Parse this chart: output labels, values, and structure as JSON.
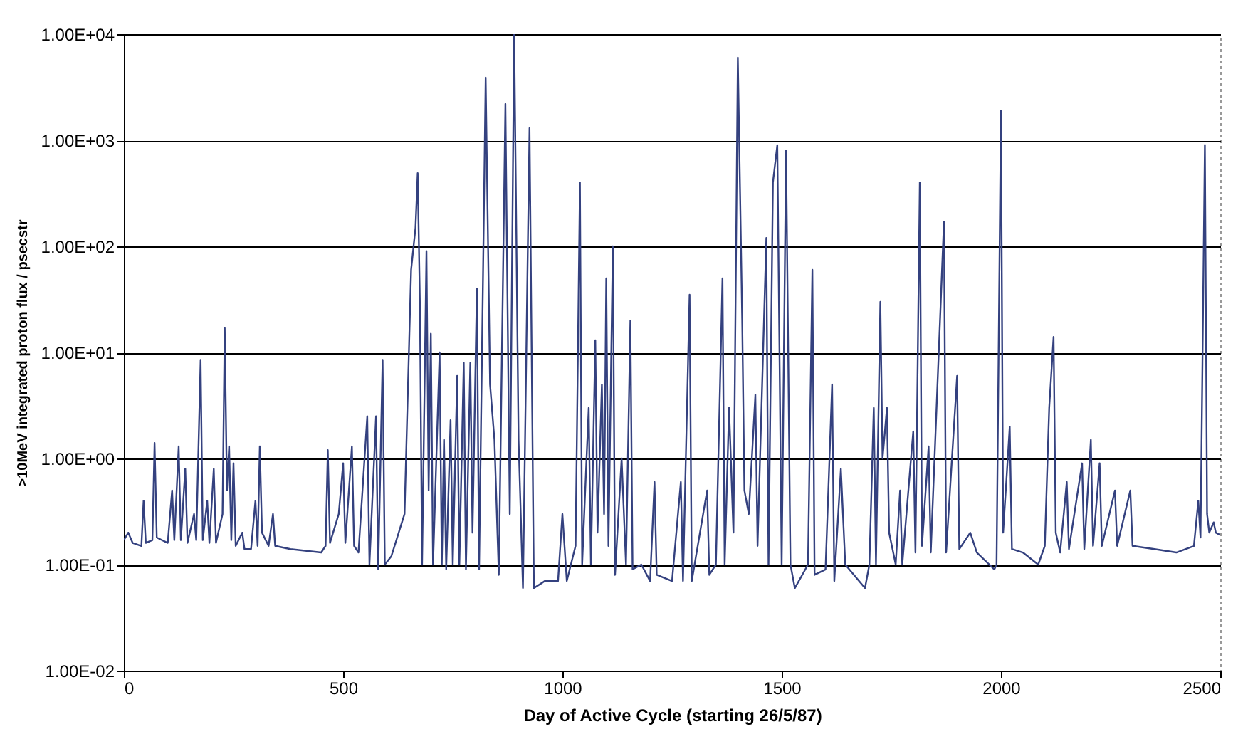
{
  "chart_data": {
    "type": "line",
    "xlabel": "Day of Active Cycle (starting 26/5/87)",
    "ylabel": ">10MeV integrated proton flux / psecstr",
    "log": "y",
    "grid": "y",
    "xlim": [
      0,
      2500
    ],
    "xticks": [
      0,
      500,
      1000,
      1500,
      2000,
      2500
    ],
    "ylim": [
      0.01,
      10000
    ],
    "yticks": [
      {
        "value": 0.01,
        "label": "1.00E-02"
      },
      {
        "value": 0.1,
        "label": "1.00E-01"
      },
      {
        "value": 1,
        "label": "1.00E+00"
      },
      {
        "value": 10,
        "label": "1.00E+01"
      },
      {
        "value": 100,
        "label": "1.00E+02"
      },
      {
        "value": 1000,
        "label": "1.00E+03"
      },
      {
        "value": 10000,
        "label": "1.00E+04"
      }
    ],
    "series": [
      {
        "color": "#34417f",
        "x": [
          0,
          10,
          20,
          40,
          45,
          50,
          65,
          70,
          75,
          100,
          110,
          115,
          125,
          130,
          140,
          145,
          160,
          165,
          175,
          180,
          190,
          195,
          205,
          210,
          225,
          230,
          235,
          240,
          245,
          250,
          255,
          270,
          275,
          290,
          300,
          305,
          310,
          315,
          330,
          340,
          345,
          380,
          450,
          460,
          465,
          470,
          490,
          500,
          505,
          520,
          525,
          535,
          555,
          560,
          575,
          580,
          590,
          595,
          610,
          640,
          655,
          665,
          670,
          675,
          680,
          690,
          695,
          700,
          705,
          720,
          725,
          730,
          735,
          745,
          750,
          760,
          765,
          775,
          780,
          790,
          795,
          805,
          810,
          825,
          835,
          845,
          855,
          870,
          880,
          890,
          900,
          910,
          925,
          935,
          960,
          990,
          1000,
          1010,
          1030,
          1040,
          1045,
          1055,
          1060,
          1065,
          1075,
          1080,
          1090,
          1095,
          1100,
          1105,
          1115,
          1120,
          1135,
          1145,
          1155,
          1160,
          1180,
          1200,
          1210,
          1215,
          1250,
          1270,
          1275,
          1290,
          1295,
          1330,
          1335,
          1350,
          1365,
          1370,
          1380,
          1390,
          1400,
          1410,
          1415,
          1425,
          1440,
          1445,
          1465,
          1470,
          1480,
          1490,
          1495,
          1500,
          1510,
          1520,
          1530,
          1560,
          1570,
          1575,
          1600,
          1615,
          1620,
          1635,
          1645,
          1690,
          1700,
          1710,
          1715,
          1725,
          1730,
          1740,
          1745,
          1760,
          1770,
          1775,
          1800,
          1805,
          1815,
          1820,
          1835,
          1840,
          1870,
          1875,
          1900,
          1905,
          1930,
          1945,
          1985,
          1990,
          2000,
          2005,
          2020,
          2025,
          2050,
          2085,
          2100,
          2110,
          2120,
          2125,
          2135,
          2150,
          2155,
          2185,
          2190,
          2205,
          2210,
          2225,
          2230,
          2260,
          2265,
          2295,
          2300,
          2350,
          2400,
          2440,
          2450,
          2455,
          2465,
          2470,
          2475,
          2485,
          2490,
          2500
        ],
        "values": [
          0.17,
          0.2,
          0.16,
          0.15,
          0.4,
          0.16,
          0.17,
          1.4,
          0.18,
          0.16,
          0.5,
          0.17,
          1.3,
          0.17,
          0.8,
          0.16,
          0.3,
          0.17,
          8.5,
          0.17,
          0.4,
          0.16,
          0.8,
          0.16,
          0.3,
          17,
          0.5,
          1.3,
          0.17,
          0.9,
          0.15,
          0.2,
          0.14,
          0.14,
          0.4,
          0.15,
          1.3,
          0.2,
          0.15,
          0.3,
          0.15,
          0.14,
          0.13,
          0.15,
          1.2,
          0.16,
          0.3,
          0.9,
          0.16,
          1.3,
          0.15,
          0.13,
          2.5,
          0.1,
          2.5,
          0.09,
          8.5,
          0.1,
          0.12,
          0.3,
          60,
          150,
          490,
          30,
          0.1,
          90,
          0.5,
          15,
          0.1,
          10,
          0.1,
          1.5,
          0.09,
          2.3,
          0.1,
          6,
          0.1,
          8,
          0.09,
          8,
          0.2,
          40,
          0.09,
          3900,
          5,
          1.5,
          0.08,
          2200,
          0.3,
          10000,
          1.5,
          0.06,
          1300,
          0.06,
          0.07,
          0.07,
          0.3,
          0.07,
          0.15,
          400,
          0.1,
          1,
          3,
          0.1,
          13,
          0.2,
          5,
          0.3,
          50,
          0.15,
          100,
          0.08,
          1,
          0.1,
          20,
          0.09,
          0.1,
          0.07,
          0.6,
          0.08,
          0.07,
          0.6,
          0.07,
          35,
          0.07,
          0.5,
          0.08,
          0.1,
          50,
          0.1,
          3,
          0.2,
          6000,
          20,
          0.5,
          0.3,
          4,
          0.15,
          120,
          0.1,
          400,
          900,
          10,
          0.1,
          800,
          0.1,
          0.06,
          0.1,
          60,
          0.08,
          0.09,
          5,
          0.07,
          0.8,
          0.1,
          0.06,
          0.1,
          3,
          0.1,
          30,
          1,
          3,
          0.2,
          0.1,
          0.5,
          0.1,
          1.8,
          0.13,
          400,
          0.15,
          1.3,
          0.13,
          170,
          0.13,
          6,
          0.14,
          0.2,
          0.13,
          0.09,
          0.1,
          1900,
          0.2,
          2,
          0.14,
          0.13,
          0.1,
          0.15,
          3,
          14,
          0.2,
          0.13,
          0.6,
          0.14,
          0.9,
          0.14,
          1.5,
          0.15,
          0.9,
          0.15,
          0.5,
          0.15,
          0.5,
          0.15,
          0.14,
          0.13,
          0.15,
          0.4,
          0.18,
          900,
          0.3,
          0.2,
          0.25,
          0.2,
          0.19
        ]
      }
    ]
  }
}
